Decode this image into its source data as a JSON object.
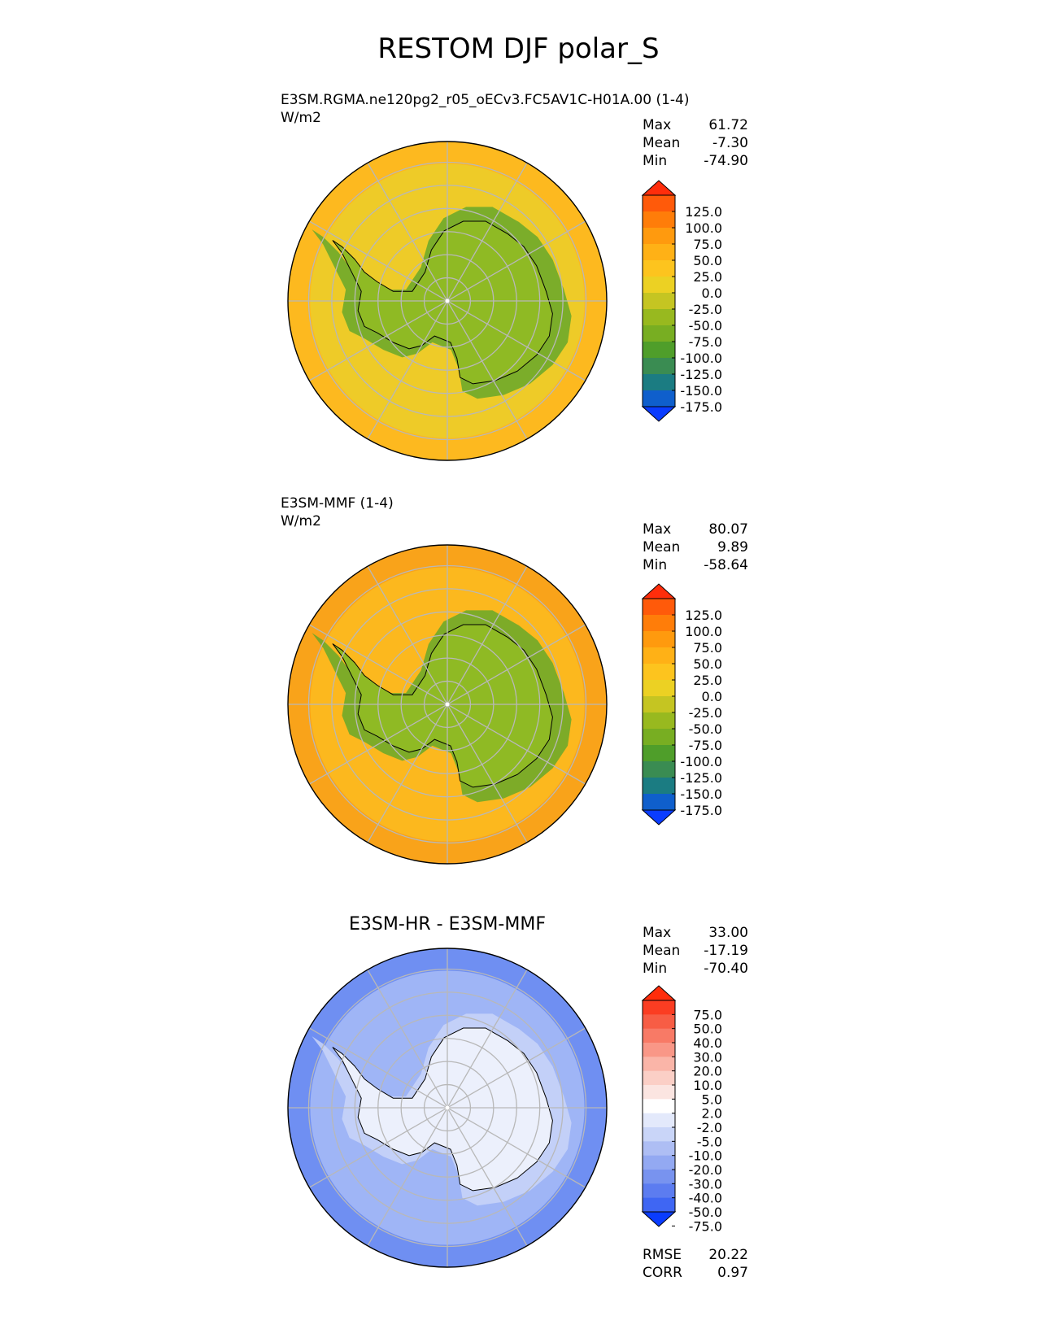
{
  "title": "RESTOM DJF polar_S",
  "panels": [
    {
      "subtitle": "E3SM.RGMA.ne120pg2_r05_oECv3.FC5AV1C-H01A.00 (1-4)",
      "units": "W/m2",
      "stats": [
        {
          "label": "Max",
          "value": "61.72"
        },
        {
          "label": "Mean",
          "value": "-7.30"
        },
        {
          "label": "Min",
          "value": "-74.90"
        }
      ],
      "ocean_color": "#eecb28",
      "ring_color": "#fdb91f",
      "ice_color": "#8fba24",
      "ice_edge_color": "#66a82a"
    },
    {
      "subtitle": "E3SM-MMF (1-4)",
      "units": "W/m2",
      "stats": [
        {
          "label": "Max",
          "value": "80.07"
        },
        {
          "label": "Mean",
          "value": "9.89"
        },
        {
          "label": "Min",
          "value": "-58.64"
        }
      ],
      "ocean_color": "#fcb81e",
      "ring_color": "#f9a31a",
      "ice_color": "#8fba24",
      "ice_edge_color": "#66a82a"
    },
    {
      "title": "E3SM-HR - E3SM-MMF",
      "stats": [
        {
          "label": "Max",
          "value": "33.00"
        },
        {
          "label": "Mean",
          "value": "-17.19"
        },
        {
          "label": "Min",
          "value": "-70.40"
        }
      ],
      "extra_stats": [
        {
          "label": "RMSE",
          "value": "20.22"
        },
        {
          "label": "CORR",
          "value": "0.97"
        }
      ],
      "ocean_color": "#9fb5f6",
      "ring_color": "#6f8ff2",
      "ice_color": "#ecf0fc",
      "ice_edge_color": "#c9d5f8"
    }
  ],
  "colorbars": {
    "main": {
      "labels": [
        "125.0",
        "100.0",
        "75.0",
        "50.0",
        "25.0",
        "0.0",
        "-25.0",
        "-50.0",
        "-75.0",
        "-100.0",
        "-125.0",
        "-150.0",
        "-175.0"
      ],
      "colors": [
        "#ff2d0b",
        "#ff5a0a",
        "#ff7d09",
        "#ff9a0e",
        "#ffb116",
        "#fdc41e",
        "#ecd123",
        "#c5c522",
        "#98b91f",
        "#78ae22",
        "#4f9e2a",
        "#3a8c52",
        "#1b7c82",
        "#0f5fcc",
        "#0a3cff"
      ]
    },
    "diff": {
      "labels": [
        "75.0",
        "50.0",
        "40.0",
        "30.0",
        "20.0",
        "10.0",
        "5.0",
        "2.0",
        "-2.0",
        "-5.0",
        "-10.0",
        "-20.0",
        "-30.0",
        "-40.0",
        "-50.0",
        "-75.0"
      ],
      "colors": [
        "#ff2d0b",
        "#fb3d22",
        "#f75d45",
        "#f87a66",
        "#f99787",
        "#fab5a8",
        "#fbcfc6",
        "#fbe5e1",
        "#ffffff",
        "#e3e9fb",
        "#c9d5f8",
        "#aebef4",
        "#93a9f2",
        "#7893ef",
        "#5c7cf0",
        "#3f66f3",
        "#0a3cff"
      ]
    }
  }
}
